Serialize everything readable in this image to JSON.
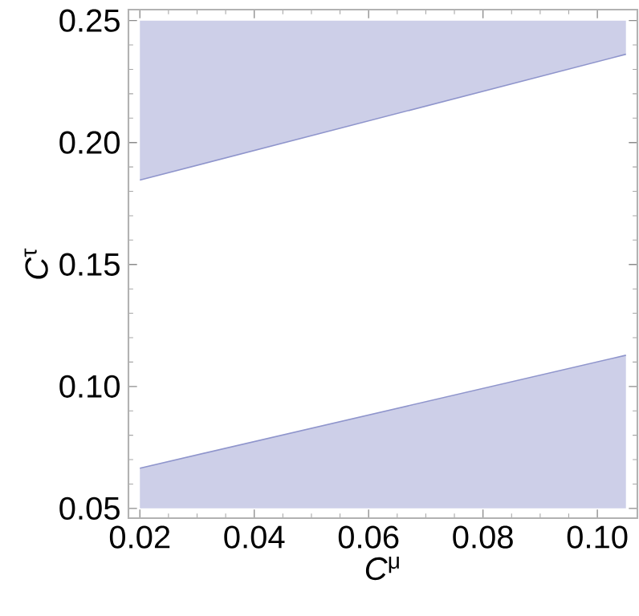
{
  "chart_data": {
    "type": "line",
    "xlabel": "*C*$^{μ}$",
    "ylabel": "*C*$^{τ}$",
    "xlim": [
      0.018,
      0.107
    ],
    "ylim": [
      0.046,
      0.2545
    ],
    "xticks": [
      {
        "value": 0.02,
        "label": "0.02"
      },
      {
        "value": 0.04,
        "label": "0.04"
      },
      {
        "value": 0.06,
        "label": "0.06"
      },
      {
        "value": 0.08,
        "label": "0.08"
      },
      {
        "value": 0.1,
        "label": "0.10"
      }
    ],
    "yticks": [
      {
        "value": 0.05,
        "label": "0.05"
      },
      {
        "value": 0.1,
        "label": "0.10"
      },
      {
        "value": 0.15,
        "label": "0.15"
      },
      {
        "value": 0.2,
        "label": "0.20"
      },
      {
        "value": 0.25,
        "label": "0.25"
      }
    ],
    "x": [
      0.02,
      0.105
    ],
    "series": [
      {
        "color": "#8f95cc",
        "values": [
          0.0665,
          0.1128
        ],
        "lower": [
          0.05,
          0.05
        ],
        "upper": [
          0.0665,
          0.1128
        ]
      },
      {
        "color": "#8f95cc",
        "values": [
          0.1846,
          0.2362
        ],
        "lower": [
          0.1846,
          0.2362
        ],
        "upper": [
          0.25,
          0.25
        ]
      }
    ]
  }
}
